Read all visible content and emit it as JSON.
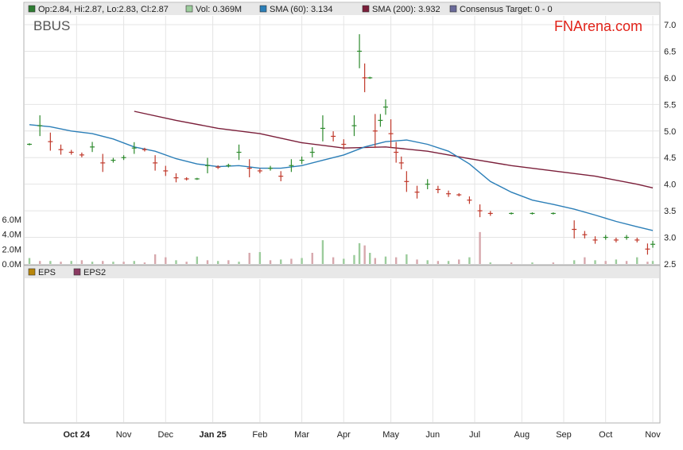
{
  "ticker": "BBUS",
  "brand": "FNArena.com",
  "legend_top": [
    {
      "id": "ohlc",
      "label": "Op:2.84, Hi:2.87, Lo:2.83, Cl:2.87",
      "color": "#2e7d32"
    },
    {
      "id": "vol",
      "label": "Vol: 0.369M",
      "color": "#9ccc9c"
    },
    {
      "id": "sma60",
      "label": "SMA (60): 3.134",
      "color": "#2c7fb8"
    },
    {
      "id": "sma200",
      "label": "SMA (200): 3.932",
      "color": "#7b1f3a"
    },
    {
      "id": "target",
      "label": "Consensus Target: 0 - 0",
      "color": "#6a6a9a"
    }
  ],
  "legend_bottom": [
    {
      "id": "eps",
      "label": "EPS",
      "color": "#b8860b"
    },
    {
      "id": "eps2",
      "label": "EPS2",
      "color": "#8b3a62"
    }
  ],
  "colors": {
    "up": "#2e8b2e",
    "down": "#c0392b",
    "sma60": "#2c7fb8",
    "sma200": "#7b1f3a",
    "volume": "#d7a8ad",
    "grid": "#e4e4e4",
    "legend_bg": "#e8e8e8",
    "brand": "#e2231a"
  },
  "chart_data": {
    "type": "line",
    "price_axis": {
      "ticks": [
        "7.0",
        "6.5",
        "6.0",
        "5.5",
        "5.0",
        "4.5",
        "4.0",
        "3.5",
        "3.0",
        "2.5"
      ],
      "min": 2.5,
      "max": 7.0
    },
    "volume_axis": {
      "ticks": [
        "6.0M",
        "4.0M",
        "2.0M",
        "0.0M"
      ],
      "min": 0,
      "max": 6.0
    },
    "x_ticks": [
      "Oct 24",
      "Nov",
      "Dec",
      "Jan 25",
      "Feb",
      "Mar",
      "Apr",
      "May",
      "Jun",
      "Jul",
      "Aug",
      "Sep",
      "Oct",
      "Nov"
    ],
    "x_range": [
      0,
      59.5
    ],
    "x_tick_positions": [
      4.5,
      9,
      13,
      17.5,
      22,
      26,
      30,
      34.5,
      38.5,
      42.5,
      47,
      51,
      55,
      59.5
    ],
    "price": [
      {
        "x": 0,
        "y": 4.75
      },
      {
        "x": 1,
        "y": 5.1
      },
      {
        "x": 2,
        "y": 4.8
      },
      {
        "x": 3,
        "y": 4.65
      },
      {
        "x": 4,
        "y": 4.6
      },
      {
        "x": 5,
        "y": 4.55
      },
      {
        "x": 6,
        "y": 4.7
      },
      {
        "x": 7,
        "y": 4.4
      },
      {
        "x": 8,
        "y": 4.45
      },
      {
        "x": 9,
        "y": 4.5
      },
      {
        "x": 10,
        "y": 4.68
      },
      {
        "x": 11,
        "y": 4.65
      },
      {
        "x": 12,
        "y": 4.4
      },
      {
        "x": 13,
        "y": 4.25
      },
      {
        "x": 14,
        "y": 4.12
      },
      {
        "x": 15,
        "y": 4.1
      },
      {
        "x": 16,
        "y": 4.1
      },
      {
        "x": 17,
        "y": 4.35
      },
      {
        "x": 18,
        "y": 4.32
      },
      {
        "x": 19,
        "y": 4.35
      },
      {
        "x": 20,
        "y": 4.6
      },
      {
        "x": 21,
        "y": 4.3
      },
      {
        "x": 22,
        "y": 4.25
      },
      {
        "x": 23,
        "y": 4.3
      },
      {
        "x": 24,
        "y": 4.15
      },
      {
        "x": 25,
        "y": 4.35
      },
      {
        "x": 26,
        "y": 4.45
      },
      {
        "x": 27,
        "y": 4.6
      },
      {
        "x": 28,
        "y": 5.05
      },
      {
        "x": 29,
        "y": 4.9
      },
      {
        "x": 30,
        "y": 4.75
      },
      {
        "x": 31,
        "y": 5.1
      },
      {
        "x": 31.5,
        "y": 6.5
      },
      {
        "x": 32,
        "y": 6.0
      },
      {
        "x": 32.5,
        "y": 6.0
      },
      {
        "x": 33,
        "y": 5.0
      },
      {
        "x": 33.5,
        "y": 5.2
      },
      {
        "x": 34,
        "y": 5.45
      },
      {
        "x": 34.5,
        "y": 4.95
      },
      {
        "x": 35,
        "y": 4.6
      },
      {
        "x": 35.5,
        "y": 4.4
      },
      {
        "x": 36,
        "y": 4.05
      },
      {
        "x": 37,
        "y": 3.85
      },
      {
        "x": 38,
        "y": 4.0
      },
      {
        "x": 39,
        "y": 3.9
      },
      {
        "x": 40,
        "y": 3.82
      },
      {
        "x": 41,
        "y": 3.8
      },
      {
        "x": 42,
        "y": 3.7
      },
      {
        "x": 43,
        "y": 3.5
      },
      {
        "x": 44,
        "y": 3.45
      },
      {
        "x": 46,
        "y": 3.45
      },
      {
        "x": 48,
        "y": 3.45
      },
      {
        "x": 50,
        "y": 3.45
      },
      {
        "x": 52,
        "y": 3.15
      },
      {
        "x": 53,
        "y": 3.05
      },
      {
        "x": 54,
        "y": 2.95
      },
      {
        "x": 55,
        "y": 3.0
      },
      {
        "x": 56,
        "y": 2.95
      },
      {
        "x": 57,
        "y": 3.0
      },
      {
        "x": 58,
        "y": 2.95
      },
      {
        "x": 59,
        "y": 2.78
      },
      {
        "x": 59.5,
        "y": 2.87
      }
    ],
    "sma60": [
      {
        "x": 0,
        "y": 5.12
      },
      {
        "x": 2,
        "y": 5.08
      },
      {
        "x": 4,
        "y": 5.0
      },
      {
        "x": 6,
        "y": 4.95
      },
      {
        "x": 8,
        "y": 4.85
      },
      {
        "x": 10,
        "y": 4.7
      },
      {
        "x": 12,
        "y": 4.62
      },
      {
        "x": 14,
        "y": 4.48
      },
      {
        "x": 16,
        "y": 4.38
      },
      {
        "x": 18,
        "y": 4.33
      },
      {
        "x": 20,
        "y": 4.35
      },
      {
        "x": 22,
        "y": 4.3
      },
      {
        "x": 24,
        "y": 4.3
      },
      {
        "x": 26,
        "y": 4.35
      },
      {
        "x": 28,
        "y": 4.45
      },
      {
        "x": 30,
        "y": 4.55
      },
      {
        "x": 32,
        "y": 4.7
      },
      {
        "x": 34,
        "y": 4.8
      },
      {
        "x": 36,
        "y": 4.83
      },
      {
        "x": 38,
        "y": 4.75
      },
      {
        "x": 40,
        "y": 4.62
      },
      {
        "x": 42,
        "y": 4.38
      },
      {
        "x": 44,
        "y": 4.05
      },
      {
        "x": 46,
        "y": 3.85
      },
      {
        "x": 48,
        "y": 3.7
      },
      {
        "x": 50,
        "y": 3.62
      },
      {
        "x": 52,
        "y": 3.53
      },
      {
        "x": 54,
        "y": 3.42
      },
      {
        "x": 56,
        "y": 3.3
      },
      {
        "x": 58,
        "y": 3.2
      },
      {
        "x": 59.5,
        "y": 3.13
      }
    ],
    "sma200": [
      {
        "x": 10,
        "y": 5.37
      },
      {
        "x": 14,
        "y": 5.2
      },
      {
        "x": 18,
        "y": 5.05
      },
      {
        "x": 22,
        "y": 4.95
      },
      {
        "x": 26,
        "y": 4.78
      },
      {
        "x": 30,
        "y": 4.68
      },
      {
        "x": 34,
        "y": 4.7
      },
      {
        "x": 38,
        "y": 4.62
      },
      {
        "x": 42,
        "y": 4.48
      },
      {
        "x": 46,
        "y": 4.35
      },
      {
        "x": 50,
        "y": 4.25
      },
      {
        "x": 54,
        "y": 4.15
      },
      {
        "x": 58,
        "y": 4.0
      },
      {
        "x": 59.5,
        "y": 3.93
      }
    ],
    "volume": [
      {
        "x": 0,
        "y": 0.8
      },
      {
        "x": 1,
        "y": 0.4
      },
      {
        "x": 2,
        "y": 0.4
      },
      {
        "x": 3,
        "y": 0.3
      },
      {
        "x": 4,
        "y": 0.4
      },
      {
        "x": 5,
        "y": 0.5
      },
      {
        "x": 6,
        "y": 0.3
      },
      {
        "x": 7,
        "y": 0.4
      },
      {
        "x": 8,
        "y": 0.3
      },
      {
        "x": 9,
        "y": 0.3
      },
      {
        "x": 10,
        "y": 0.4
      },
      {
        "x": 11,
        "y": 0.2
      },
      {
        "x": 12,
        "y": 1.3
      },
      {
        "x": 13,
        "y": 0.9
      },
      {
        "x": 14,
        "y": 0.5
      },
      {
        "x": 15,
        "y": 0.3
      },
      {
        "x": 16,
        "y": 1.0
      },
      {
        "x": 17,
        "y": 0.5
      },
      {
        "x": 18,
        "y": 0.4
      },
      {
        "x": 19,
        "y": 0.5
      },
      {
        "x": 20,
        "y": 0.3
      },
      {
        "x": 21,
        "y": 1.5
      },
      {
        "x": 22,
        "y": 1.6
      },
      {
        "x": 23,
        "y": 0.5
      },
      {
        "x": 24,
        "y": 0.6
      },
      {
        "x": 25,
        "y": 0.7
      },
      {
        "x": 26,
        "y": 0.8
      },
      {
        "x": 27,
        "y": 1.5
      },
      {
        "x": 28,
        "y": 3.2
      },
      {
        "x": 29,
        "y": 0.9
      },
      {
        "x": 30,
        "y": 0.7
      },
      {
        "x": 31,
        "y": 1.2
      },
      {
        "x": 31.5,
        "y": 2.8
      },
      {
        "x": 32,
        "y": 2.5
      },
      {
        "x": 32.5,
        "y": 1.5
      },
      {
        "x": 33,
        "y": 0.8
      },
      {
        "x": 34,
        "y": 1.0
      },
      {
        "x": 35,
        "y": 0.9
      },
      {
        "x": 36,
        "y": 1.3
      },
      {
        "x": 37,
        "y": 0.6
      },
      {
        "x": 38,
        "y": 0.5
      },
      {
        "x": 39,
        "y": 0.4
      },
      {
        "x": 40,
        "y": 0.4
      },
      {
        "x": 41,
        "y": 0.6
      },
      {
        "x": 42,
        "y": 0.9
      },
      {
        "x": 43,
        "y": 4.3
      },
      {
        "x": 44,
        "y": 0.2
      },
      {
        "x": 46,
        "y": 0.2
      },
      {
        "x": 48,
        "y": 0.2
      },
      {
        "x": 50,
        "y": 0.2
      },
      {
        "x": 52,
        "y": 0.5
      },
      {
        "x": 53,
        "y": 0.9
      },
      {
        "x": 54,
        "y": 0.5
      },
      {
        "x": 55,
        "y": 0.4
      },
      {
        "x": 56,
        "y": 0.6
      },
      {
        "x": 57,
        "y": 0.4
      },
      {
        "x": 58,
        "y": 0.9
      },
      {
        "x": 59,
        "y": 0.3
      },
      {
        "x": 59.5,
        "y": 0.4
      }
    ]
  }
}
